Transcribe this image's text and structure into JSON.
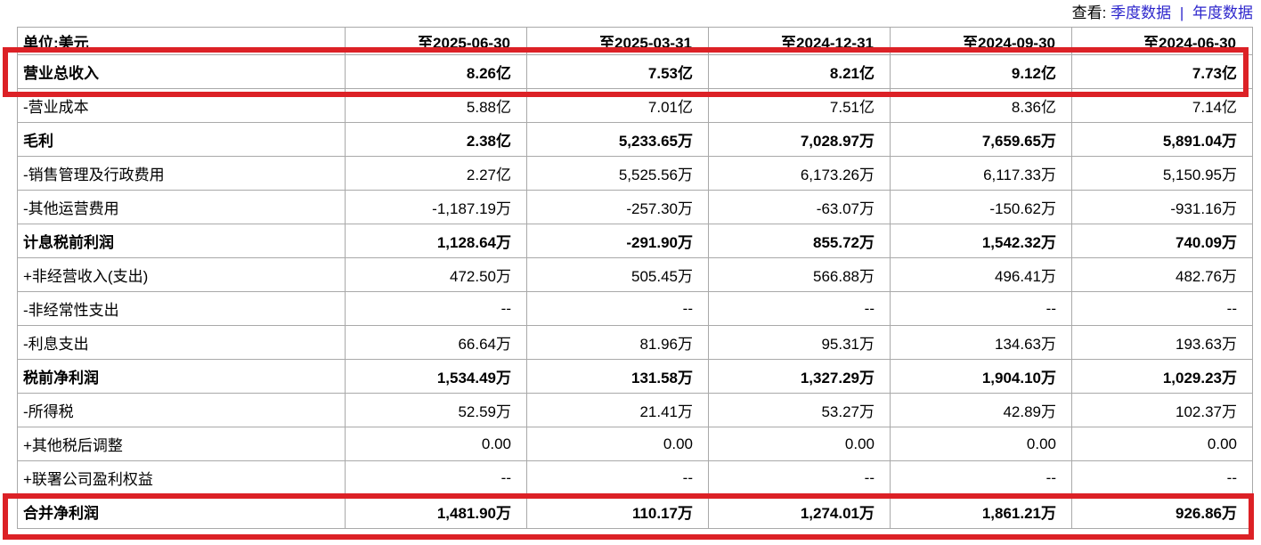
{
  "view_bar": {
    "label": "查看:",
    "quarterly_link": "季度数据",
    "separator": "|",
    "annual_link": "年度数据",
    "link_color": "#2d26cc"
  },
  "table": {
    "unit_header": "单位:美元",
    "columns": [
      "至2025-06-30",
      "至2025-03-31",
      "至2024-12-31",
      "至2024-09-30",
      "至2024-06-30"
    ],
    "rows": [
      {
        "label": "营业总收入",
        "bold": true,
        "highlighted": true,
        "values": [
          "8.26亿",
          "7.53亿",
          "8.21亿",
          "9.12亿",
          "7.73亿"
        ]
      },
      {
        "label": "-营业成本",
        "bold": false,
        "values": [
          "5.88亿",
          "7.01亿",
          "7.51亿",
          "8.36亿",
          "7.14亿"
        ]
      },
      {
        "label": "毛利",
        "bold": true,
        "values": [
          "2.38亿",
          "5,233.65万",
          "7,028.97万",
          "7,659.65万",
          "5,891.04万"
        ]
      },
      {
        "label": "-销售管理及行政费用",
        "bold": false,
        "values": [
          "2.27亿",
          "5,525.56万",
          "6,173.26万",
          "6,117.33万",
          "5,150.95万"
        ]
      },
      {
        "label": "-其他运营费用",
        "bold": false,
        "values": [
          "-1,187.19万",
          "-257.30万",
          "-63.07万",
          "-150.62万",
          "-931.16万"
        ]
      },
      {
        "label": "计息税前利润",
        "bold": true,
        "values": [
          "1,128.64万",
          "-291.90万",
          "855.72万",
          "1,542.32万",
          "740.09万"
        ]
      },
      {
        "label": "+非经营收入(支出)",
        "bold": false,
        "values": [
          "472.50万",
          "505.45万",
          "566.88万",
          "496.41万",
          "482.76万"
        ]
      },
      {
        "label": "-非经常性支出",
        "bold": false,
        "values": [
          "--",
          "--",
          "--",
          "--",
          "--"
        ]
      },
      {
        "label": "-利息支出",
        "bold": false,
        "values": [
          "66.64万",
          "81.96万",
          "95.31万",
          "134.63万",
          "193.63万"
        ]
      },
      {
        "label": "税前净利润",
        "bold": true,
        "values": [
          "1,534.49万",
          "131.58万",
          "1,327.29万",
          "1,904.10万",
          "1,029.23万"
        ]
      },
      {
        "label": "-所得税",
        "bold": false,
        "values": [
          "52.59万",
          "21.41万",
          "53.27万",
          "42.89万",
          "102.37万"
        ]
      },
      {
        "label": "+其他税后调整",
        "bold": false,
        "values": [
          "0.00",
          "0.00",
          "0.00",
          "0.00",
          "0.00"
        ]
      },
      {
        "label": "+联署公司盈利权益",
        "bold": false,
        "values": [
          "--",
          "--",
          "--",
          "--",
          "--"
        ]
      },
      {
        "label": "合并净利润",
        "bold": true,
        "highlighted": true,
        "values": [
          "1,481.90万",
          "110.17万",
          "1,274.01万",
          "1,861.21万",
          "926.86万"
        ]
      }
    ]
  },
  "annotations": {
    "highlight_color": "#dc2126",
    "highlighted_rows": [
      "营业总收入",
      "合并净利润"
    ]
  },
  "colors": {
    "table_border": "#a9a9a9",
    "text": "#000000",
    "background": "#ffffff"
  }
}
